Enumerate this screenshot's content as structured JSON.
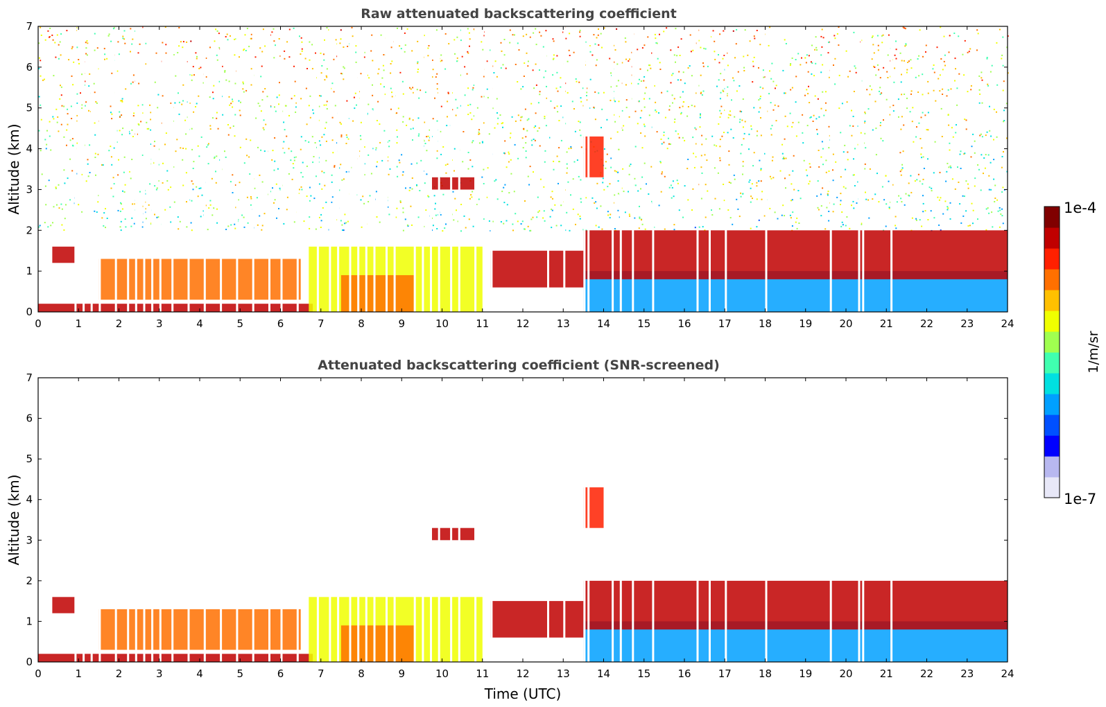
{
  "figure": {
    "colorbar": {
      "max_label": "1e-4",
      "min_label": "1e-7",
      "unit_label": "1/m/sr",
      "scale": "log",
      "range": [
        1e-07,
        0.0001
      ],
      "colormap": [
        "#e8e8f8",
        "#b8b8f0",
        "#0000ff",
        "#0050ff",
        "#00a0ff",
        "#00e0e0",
        "#40ffb0",
        "#a0ff50",
        "#f0ff00",
        "#ffc000",
        "#ff7000",
        "#ff2000",
        "#c00000",
        "#800000"
      ]
    }
  },
  "chart_data": [
    {
      "type": "heatmap",
      "title": "Raw attenuated backscattering coefficient",
      "xlabel": "",
      "ylabel": "Altitude (km)",
      "xlim": [
        0,
        24
      ],
      "ylim": [
        0,
        7
      ],
      "x_ticks": [
        "0",
        "1",
        "2",
        "3",
        "4",
        "5",
        "6",
        "7",
        "8",
        "9",
        "10",
        "11",
        "12",
        "13",
        "14",
        "15",
        "16",
        "17",
        "18",
        "19",
        "20",
        "21",
        "22",
        "23",
        "24"
      ],
      "y_ticks": [
        "0",
        "1",
        "2",
        "3",
        "4",
        "5",
        "6",
        "7"
      ],
      "grid": false,
      "noise_floor": true,
      "gap_times_utc": [
        0.9,
        1.1,
        1.3,
        1.5,
        1.9,
        2.2,
        2.4,
        2.6,
        2.8,
        3.0,
        3.3,
        3.7,
        4.1,
        4.5,
        4.9,
        5.3,
        5.7,
        6.0,
        6.4,
        6.9,
        7.2,
        7.4,
        7.7,
        7.9,
        8.1,
        8.3,
        8.6,
        8.8,
        9.3,
        9.5,
        9.7,
        9.9,
        10.2,
        10.4,
        10.8,
        11.05,
        11.2,
        12.6,
        13.0,
        13.5,
        13.6,
        14.2,
        14.4,
        14.7,
        15.2,
        16.3,
        16.6,
        17.0,
        18.0,
        19.6,
        20.3,
        20.4,
        21.1
      ],
      "features": [
        {
          "name": "surface layer",
          "t": [
            0,
            6.8
          ],
          "alt": [
            0,
            0.2
          ],
          "level": 0.95
        },
        {
          "name": "morning cloud",
          "t": [
            0.35,
            0.9
          ],
          "alt": [
            1.2,
            1.6
          ],
          "level": 0.9
        },
        {
          "name": "low aerosol",
          "t": [
            1.5,
            6.5
          ],
          "alt": [
            0.3,
            1.3
          ],
          "level": 0.8
        },
        {
          "name": "boundary layer",
          "t": [
            6.7,
            11.0
          ],
          "alt": [
            0,
            1.6
          ],
          "level": 0.65
        },
        {
          "name": "dense aerosol",
          "t": [
            7.5,
            9.3
          ],
          "alt": [
            0,
            0.9
          ],
          "level": 0.8
        },
        {
          "name": "mid-level cloud",
          "t": [
            9.7,
            10.8
          ],
          "alt": [
            3.0,
            3.3
          ],
          "level": 0.9
        },
        {
          "name": "afternoon cloud",
          "t": [
            11.2,
            13.5
          ],
          "alt": [
            0.6,
            1.5
          ],
          "level": 0.9
        },
        {
          "name": "elevated cloud",
          "t": [
            13.5,
            14.0
          ],
          "alt": [
            3.3,
            4.3
          ],
          "level": 0.85
        },
        {
          "name": "clean boundary layer",
          "t": [
            13.5,
            24
          ],
          "alt": [
            0,
            1.0
          ],
          "level": 0.3
        },
        {
          "name": "cloud tops",
          "t": [
            13.5,
            24
          ],
          "alt": [
            0.8,
            2.0
          ],
          "level": 0.92
        }
      ]
    },
    {
      "type": "heatmap",
      "title": "Attenuated backscattering coefficient (SNR-screened)",
      "xlabel": "Time (UTC)",
      "ylabel": "Altitude (km)",
      "xlim": [
        0,
        24
      ],
      "ylim": [
        0,
        7
      ],
      "x_ticks": [
        "0",
        "1",
        "2",
        "3",
        "4",
        "5",
        "6",
        "7",
        "8",
        "9",
        "10",
        "11",
        "12",
        "13",
        "14",
        "15",
        "16",
        "17",
        "18",
        "19",
        "20",
        "21",
        "22",
        "23",
        "24"
      ],
      "y_ticks": [
        "0",
        "1",
        "2",
        "3",
        "4",
        "5",
        "6",
        "7"
      ],
      "grid": false,
      "noise_floor": false,
      "gap_times_utc": [
        0.9,
        1.1,
        1.3,
        1.5,
        1.9,
        2.2,
        2.4,
        2.6,
        2.8,
        3.0,
        3.3,
        3.7,
        4.1,
        4.5,
        4.9,
        5.3,
        5.7,
        6.0,
        6.4,
        6.9,
        7.2,
        7.4,
        7.7,
        7.9,
        8.1,
        8.3,
        8.6,
        8.8,
        9.3,
        9.5,
        9.7,
        9.9,
        10.2,
        10.4,
        10.8,
        11.05,
        11.2,
        12.6,
        13.0,
        13.5,
        13.6,
        14.2,
        14.4,
        14.7,
        15.2,
        16.3,
        16.6,
        17.0,
        18.0,
        19.6,
        20.3,
        20.4,
        21.1
      ],
      "features": [
        {
          "name": "surface layer",
          "t": [
            0,
            6.8
          ],
          "alt": [
            0,
            0.2
          ],
          "level": 0.95
        },
        {
          "name": "morning cloud",
          "t": [
            0.35,
            0.9
          ],
          "alt": [
            1.2,
            1.6
          ],
          "level": 0.9
        },
        {
          "name": "low aerosol",
          "t": [
            1.5,
            6.5
          ],
          "alt": [
            0.3,
            1.3
          ],
          "level": 0.8
        },
        {
          "name": "boundary layer",
          "t": [
            6.7,
            11.0
          ],
          "alt": [
            0,
            1.6
          ],
          "level": 0.65
        },
        {
          "name": "dense aerosol",
          "t": [
            7.5,
            9.3
          ],
          "alt": [
            0,
            0.9
          ],
          "level": 0.8
        },
        {
          "name": "mid-level cloud",
          "t": [
            9.7,
            10.8
          ],
          "alt": [
            3.0,
            3.3
          ],
          "level": 0.9
        },
        {
          "name": "afternoon cloud",
          "t": [
            11.2,
            13.5
          ],
          "alt": [
            0.6,
            1.5
          ],
          "level": 0.9
        },
        {
          "name": "elevated cloud",
          "t": [
            13.5,
            14.0
          ],
          "alt": [
            3.3,
            4.3
          ],
          "level": 0.85
        },
        {
          "name": "clean boundary layer",
          "t": [
            13.5,
            24
          ],
          "alt": [
            0,
            1.0
          ],
          "level": 0.3
        },
        {
          "name": "cloud tops",
          "t": [
            13.5,
            24
          ],
          "alt": [
            0.8,
            2.0
          ],
          "level": 0.92
        }
      ]
    }
  ]
}
